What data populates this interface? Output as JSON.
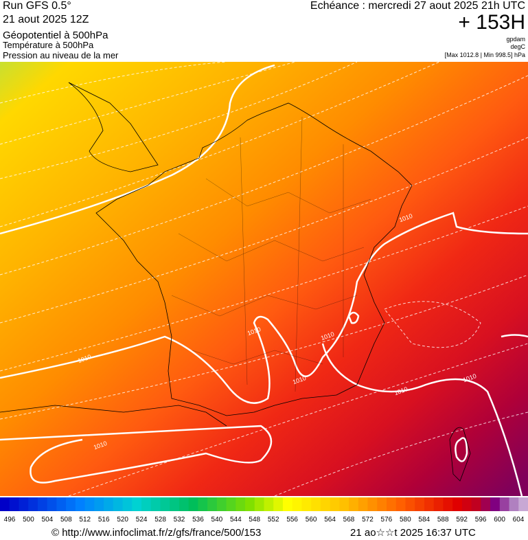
{
  "header": {
    "run": "Run GFS 0.5°",
    "run_date": "21 aout 2025 12Z",
    "field1": "Géopotentiel à 500hPa",
    "field2": "Température à 500hPa",
    "field3": "Pression au niveau de la mer",
    "valid": "Echéance : mercredi 27 aout 2025 21h UTC",
    "lead": "+ 153H",
    "unit1": "gpdam",
    "unit2": "degC",
    "pressure_range": "[Max 1012.8 | Min 998.5] hPa"
  },
  "map": {
    "isobar_labels": [
      "1010",
      "1010",
      "1010",
      "1010",
      "1010",
      "1010",
      "1010",
      "1010"
    ]
  },
  "legend": {
    "labels": [
      496,
      500,
      504,
      508,
      512,
      516,
      520,
      524,
      528,
      532,
      536,
      540,
      544,
      548,
      552,
      556,
      560,
      564,
      568,
      572,
      576,
      580,
      584,
      588,
      592,
      596,
      600,
      604
    ]
  },
  "footer": {
    "url": "© http://www.infoclimat.fr/z/gfs/france/500/153",
    "timestamp": "21 ao☆☆t 2025 16:37 UTC"
  }
}
